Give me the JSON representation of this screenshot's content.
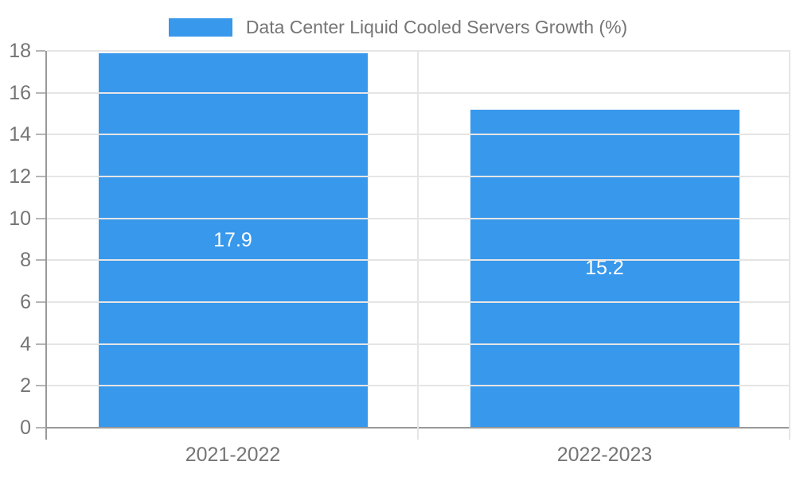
{
  "chart_data": {
    "type": "bar",
    "title": "Data Center Liquid Cooled Servers Growth (%)",
    "categories": [
      "2021-2022",
      "2022-2023"
    ],
    "values": [
      17.9,
      15.2
    ],
    "value_labels": [
      "17.9",
      "15.2"
    ],
    "xlabel": "",
    "ylabel": "",
    "ylim": [
      0,
      18
    ],
    "yticks": [
      0,
      2,
      4,
      6,
      8,
      10,
      12,
      14,
      16,
      18
    ],
    "grid": true,
    "legend": {
      "position": "top",
      "label": "Data Center Liquid Cooled Servers Growth (%)"
    }
  },
  "colors": {
    "bar": "#3898ec",
    "grid": "#e5e5e5",
    "axis": "#999999",
    "tick": "#b5b5b5",
    "axis_text": "#757575",
    "legend_text": "#757575",
    "data_label_text": "#ffffff",
    "background": "#ffffff"
  }
}
